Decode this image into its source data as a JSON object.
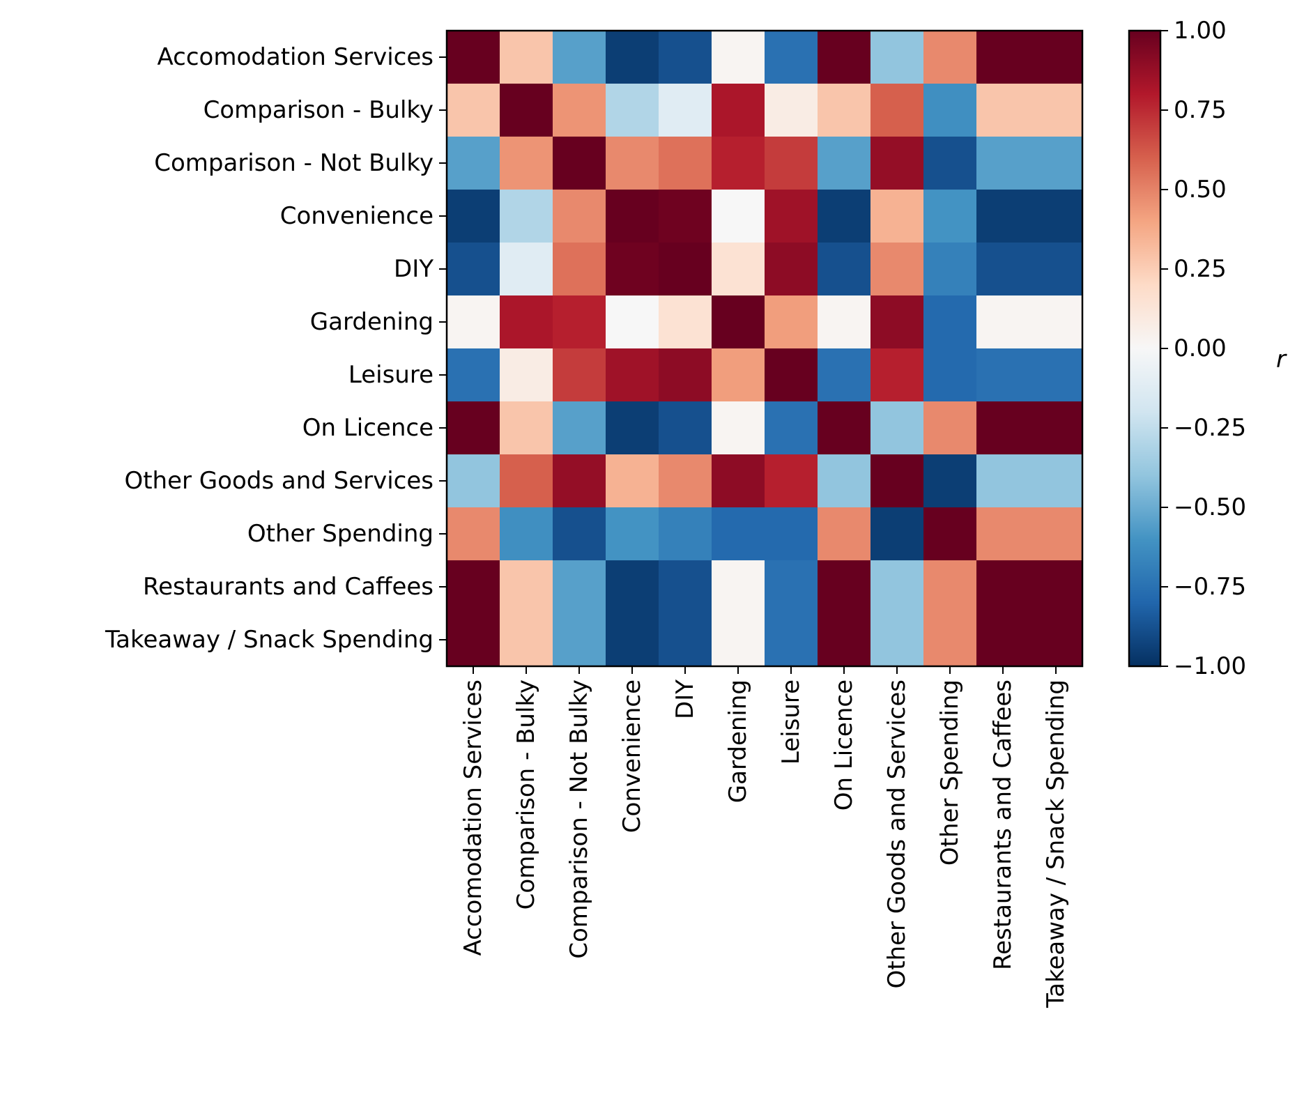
{
  "chart_data": {
    "type": "heatmap",
    "title": "",
    "xlabel": "",
    "ylabel": "",
    "categories": [
      "Accomodation Services",
      "Comparison - Bulky",
      "Comparison - Not Bulky",
      "Convenience",
      "DIY",
      "Gardening",
      "Leisure",
      "On Licence",
      "Other Goods and Services",
      "Other Spending",
      "Restaurants and Caffees",
      "Takeaway / Snack Spending"
    ],
    "values": [
      [
        1.0,
        0.28,
        -0.55,
        -0.95,
        -0.88,
        0.02,
        -0.75,
        1.0,
        -0.4,
        0.48,
        1.0,
        1.0
      ],
      [
        0.28,
        1.0,
        0.45,
        -0.3,
        -0.12,
        0.82,
        0.08,
        0.28,
        0.6,
        -0.62,
        0.28,
        0.28
      ],
      [
        -0.55,
        0.45,
        1.0,
        0.48,
        0.55,
        0.78,
        0.7,
        -0.55,
        0.88,
        -0.88,
        -0.55,
        -0.55
      ],
      [
        -0.95,
        -0.3,
        0.48,
        1.0,
        0.98,
        0.0,
        0.85,
        -0.95,
        0.35,
        -0.6,
        -0.95,
        -0.95
      ],
      [
        -0.88,
        -0.12,
        0.55,
        0.98,
        1.0,
        0.15,
        0.9,
        -0.88,
        0.48,
        -0.68,
        -0.88,
        -0.88
      ],
      [
        0.02,
        0.82,
        0.78,
        0.0,
        0.15,
        1.0,
        0.42,
        0.02,
        0.9,
        -0.78,
        0.02,
        0.02
      ],
      [
        -0.75,
        0.08,
        0.7,
        0.85,
        0.9,
        0.42,
        1.0,
        -0.75,
        0.78,
        -0.78,
        -0.75,
        -0.75
      ],
      [
        1.0,
        0.28,
        -0.55,
        -0.95,
        -0.88,
        0.02,
        -0.75,
        1.0,
        -0.4,
        0.48,
        1.0,
        1.0
      ],
      [
        -0.4,
        0.6,
        0.88,
        0.35,
        0.48,
        0.9,
        0.78,
        -0.4,
        1.0,
        -0.95,
        -0.4,
        -0.4
      ],
      [
        0.48,
        -0.62,
        -0.88,
        -0.6,
        -0.68,
        -0.78,
        -0.78,
        0.48,
        -0.95,
        1.0,
        0.48,
        0.48
      ],
      [
        1.0,
        0.28,
        -0.55,
        -0.95,
        -0.88,
        0.02,
        -0.75,
        1.0,
        -0.4,
        0.48,
        1.0,
        1.0
      ],
      [
        1.0,
        0.28,
        -0.55,
        -0.95,
        -0.88,
        0.02,
        -0.75,
        1.0,
        -0.4,
        0.48,
        1.0,
        1.0
      ]
    ],
    "colorbar": {
      "label": "r",
      "range": [
        -1.0,
        1.0
      ],
      "ticks": [
        "−1.00",
        "−0.75",
        "−0.50",
        "−0.25",
        "0.00",
        "0.25",
        "0.50",
        "0.75",
        "1.00"
      ],
      "colormap": "RdBu_r"
    },
    "grid": false
  }
}
